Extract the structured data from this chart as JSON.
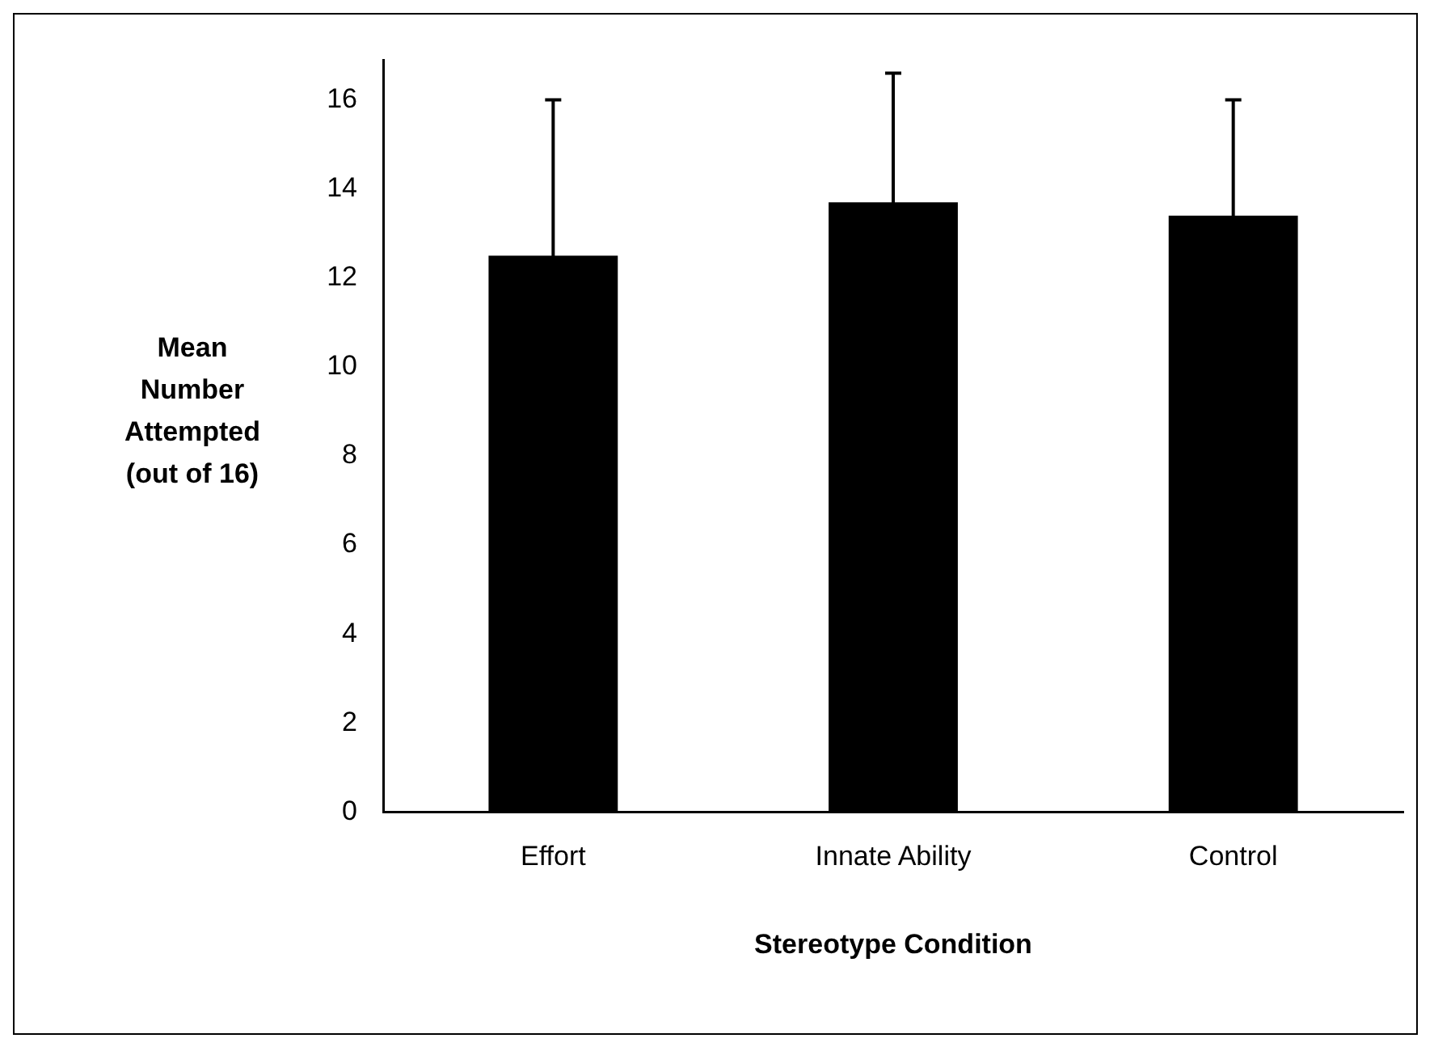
{
  "chart_data": {
    "type": "bar",
    "xlabel": "Stereotype Condition",
    "ylabel": "Mean\nNumber\nAttempted\n(out of 16)",
    "categories": [
      "Effort",
      "Innate Ability",
      "Control"
    ],
    "values": [
      12.5,
      13.7,
      13.4
    ],
    "errors": [
      3.5,
      2.9,
      2.6
    ],
    "color": "#000000",
    "ylim": [
      0,
      16.9
    ],
    "yticks": [
      0,
      2,
      4,
      6,
      8,
      10,
      12,
      14,
      16
    ],
    "grid": false,
    "legend": false
  }
}
